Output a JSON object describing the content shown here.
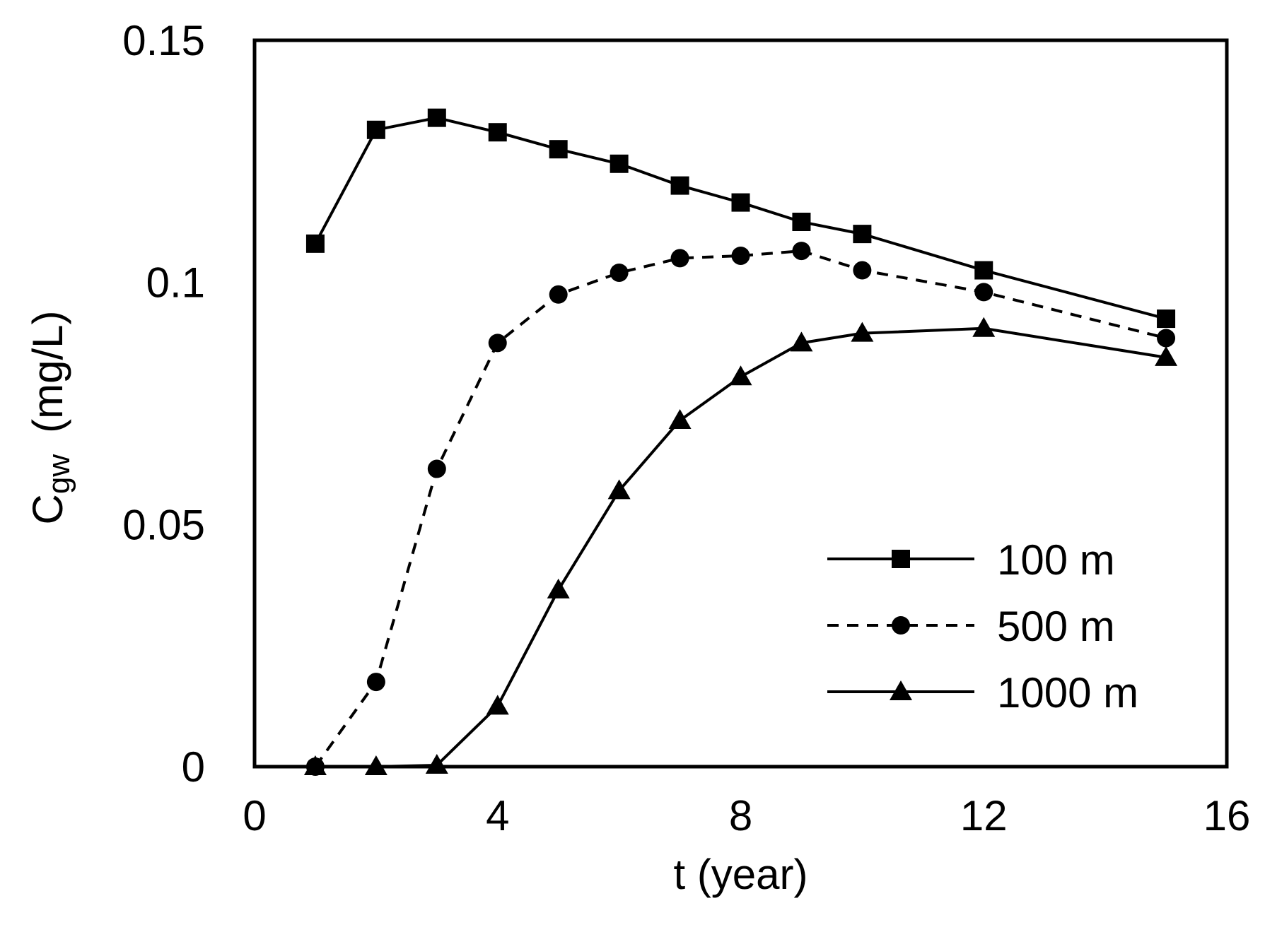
{
  "chart_data": {
    "type": "line",
    "title": "",
    "xlabel": "t (year)",
    "ylabel": {
      "main": "C",
      "subscript": "gw",
      "unit": "(mg/L)"
    },
    "xlim": [
      0,
      16
    ],
    "ylim": [
      0,
      0.15
    ],
    "xticks": [
      0,
      4,
      8,
      12,
      16
    ],
    "xtick_labels": [
      "0",
      "4",
      "8",
      "12",
      "16"
    ],
    "yticks": [
      0,
      0.05,
      0.1,
      0.15
    ],
    "ytick_labels": [
      "0",
      "0.05",
      "0.1",
      "0.15"
    ],
    "grid": false,
    "legend_position": "bottom-right",
    "series": [
      {
        "name": "100 m",
        "marker": "square",
        "line_style": "solid",
        "color": "#000000",
        "x": [
          1,
          2,
          3,
          4,
          5,
          6,
          7,
          8,
          9,
          10,
          12,
          15
        ],
        "y": [
          0.108,
          0.1315,
          0.134,
          0.131,
          0.1275,
          0.1245,
          0.12,
          0.1165,
          0.1125,
          0.11,
          0.1025,
          0.0925
        ]
      },
      {
        "name": "500 m",
        "marker": "circle",
        "line_style": "dashed",
        "color": "#000000",
        "x": [
          1,
          2,
          3,
          4,
          5,
          6,
          7,
          8,
          9,
          10,
          12,
          15
        ],
        "y": [
          0,
          0.0175,
          0.0615,
          0.0875,
          0.0975,
          0.102,
          0.105,
          0.1055,
          0.1065,
          0.1025,
          0.098,
          0.0885
        ]
      },
      {
        "name": "1000 m",
        "marker": "triangle",
        "line_style": "solid",
        "color": "#000000",
        "x": [
          1,
          2,
          3,
          4,
          5,
          6,
          7,
          8,
          9,
          10,
          12,
          15
        ],
        "y": [
          0,
          0,
          0.0003,
          0.0125,
          0.0365,
          0.057,
          0.0715,
          0.0805,
          0.0875,
          0.0895,
          0.0905,
          0.0845
        ]
      }
    ]
  }
}
